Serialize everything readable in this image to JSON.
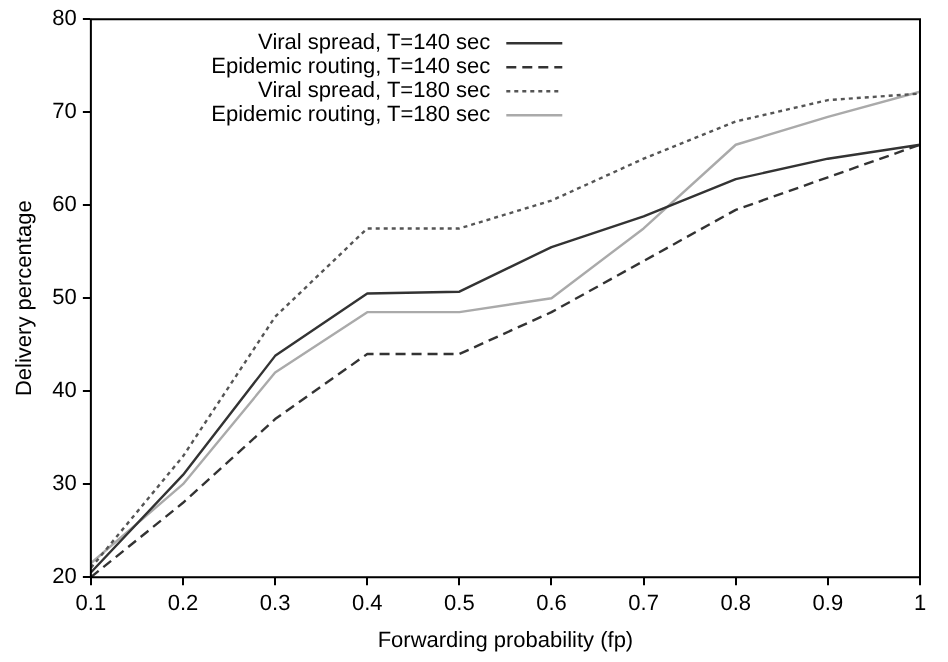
{
  "chart_data": {
    "type": "line",
    "xlabel": "Forwarding probability (fp)",
    "ylabel": "Delivery percentage",
    "x": [
      0.1,
      0.2,
      0.3,
      0.4,
      0.5,
      0.6,
      0.7,
      0.8,
      0.9,
      1
    ],
    "xlim": [
      0.1,
      1
    ],
    "xticks": [
      0.1,
      0.2,
      0.3,
      0.4,
      0.5,
      0.6,
      0.7,
      0.8,
      0.9,
      1
    ],
    "ylim": [
      20,
      80
    ],
    "yticks": [
      20,
      30,
      40,
      50,
      60,
      70,
      80
    ],
    "grid": false,
    "legend": "top left",
    "marker": "none",
    "series": [
      {
        "name": "Viral spread, T=140 sec",
        "color": "#333333",
        "line_style": "solid",
        "values": [
          20.5,
          31,
          43.8,
          50.5,
          50.7,
          55.5,
          58.8,
          62.8,
          65,
          66.5
        ]
      },
      {
        "name": "Epidemic routing, T=140 sec",
        "color": "#333333",
        "line_style": "dashed",
        "values": [
          20,
          28,
          37,
          44,
          44,
          48.5,
          54,
          59.5,
          63,
          66.5
        ]
      },
      {
        "name": "Viral spread, T=180 sec",
        "color": "#555555",
        "line_style": "dotted",
        "values": [
          21,
          33,
          48,
          57.5,
          57.5,
          60.5,
          65,
          69,
          71.3,
          72
        ]
      },
      {
        "name": "Epidemic routing, T=180 sec",
        "color": "#aaaaaa",
        "line_style": "solid",
        "values": [
          21.5,
          30,
          42,
          48.5,
          48.5,
          50,
          57.5,
          66.5,
          69.5,
          72.2
        ]
      }
    ]
  }
}
